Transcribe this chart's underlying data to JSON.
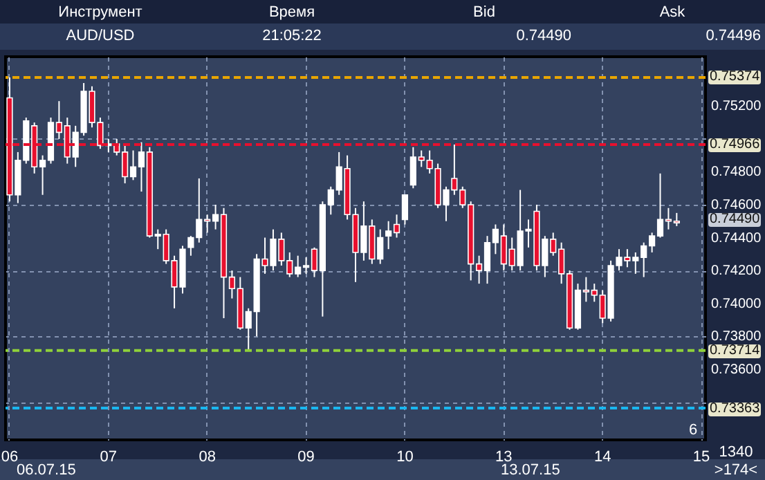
{
  "chart_data": {
    "type": "candlestick",
    "categories": [
      "06",
      null,
      null,
      null,
      null,
      null,
      null,
      null,
      null,
      null,
      null,
      null,
      "07",
      null,
      null,
      null,
      null,
      null,
      null,
      null,
      null,
      null,
      null,
      null,
      "08",
      null,
      null,
      null,
      null,
      null,
      null,
      null,
      null,
      null,
      null,
      null,
      "09",
      null,
      null,
      null,
      null,
      null,
      null,
      null,
      null,
      null,
      null,
      null,
      "10",
      null,
      null,
      null,
      null,
      null,
      null,
      null,
      null,
      null,
      null,
      null,
      "13",
      null,
      null,
      null,
      null,
      null,
      null,
      null,
      null,
      null,
      null,
      null,
      "14",
      null,
      null,
      null,
      null,
      null,
      null,
      null,
      null,
      null,
      null,
      null,
      "15"
    ],
    "ohlc": [
      [
        0.7525,
        0.75374,
        0.7462,
        0.7466
      ],
      [
        0.7466,
        0.7492,
        0.7461,
        0.7487
      ],
      [
        0.7487,
        0.7513,
        0.7485,
        0.7511
      ],
      [
        0.7508,
        0.751,
        0.7479,
        0.7483
      ],
      [
        0.7483,
        0.749,
        0.7466,
        0.7487
      ],
      [
        0.7487,
        0.7513,
        0.7485,
        0.751
      ],
      [
        0.751,
        0.7523,
        0.75,
        0.7504
      ],
      [
        0.7508,
        0.7513,
        0.7485,
        0.7489
      ],
      [
        0.7489,
        0.7508,
        0.7483,
        0.7504
      ],
      [
        0.7504,
        0.7534,
        0.7502,
        0.7529
      ],
      [
        0.7529,
        0.7532,
        0.7507,
        0.751
      ],
      [
        0.751,
        0.7513,
        0.7494,
        0.7496
      ],
      [
        0.7496,
        0.75,
        0.7492,
        0.7497
      ],
      [
        0.7497,
        0.75,
        0.749,
        0.7492
      ],
      [
        0.7492,
        0.7496,
        0.7473,
        0.7477
      ],
      [
        0.7477,
        0.7493,
        0.7475,
        0.7483
      ],
      [
        0.7483,
        0.7498,
        0.7468,
        0.7492
      ],
      [
        0.7492,
        0.7495,
        0.744,
        0.7441
      ],
      [
        0.7441,
        0.7445,
        0.7433,
        0.7442
      ],
      [
        0.7442,
        0.7445,
        0.7424,
        0.7426
      ],
      [
        0.7426,
        0.7429,
        0.7397,
        0.741
      ],
      [
        0.741,
        0.7435,
        0.7406,
        0.7433
      ],
      [
        0.7434,
        0.7441,
        0.7429,
        0.744
      ],
      [
        0.744,
        0.7476,
        0.7437,
        0.7451
      ],
      [
        0.7451,
        0.7454,
        0.7443,
        0.745
      ],
      [
        0.745,
        0.746,
        0.7445,
        0.7454
      ],
      [
        0.7454,
        0.7458,
        0.7391,
        0.7416
      ],
      [
        0.7416,
        0.742,
        0.7403,
        0.7409
      ],
      [
        0.7409,
        0.7416,
        0.7384,
        0.7385
      ],
      [
        0.7385,
        0.7397,
        0.73714,
        0.7395
      ],
      [
        0.7395,
        0.743,
        0.738,
        0.7427
      ],
      [
        0.7427,
        0.744,
        0.7418,
        0.7423
      ],
      [
        0.7423,
        0.7445,
        0.742,
        0.7439
      ],
      [
        0.7439,
        0.7443,
        0.7423,
        0.7426
      ],
      [
        0.7426,
        0.7431,
        0.7416,
        0.7418
      ],
      [
        0.7418,
        0.7429,
        0.7416,
        0.7422
      ],
      [
        0.7422,
        0.7428,
        0.7418,
        0.7423
      ],
      [
        0.7433,
        0.7434,
        0.7416,
        0.742
      ],
      [
        0.742,
        0.7462,
        0.7392,
        0.746
      ],
      [
        0.746,
        0.7471,
        0.7454,
        0.7469
      ],
      [
        0.7469,
        0.7492,
        0.7466,
        0.7483
      ],
      [
        0.7482,
        0.749,
        0.7451,
        0.7454
      ],
      [
        0.7454,
        0.7458,
        0.7413,
        0.7431
      ],
      [
        0.7431,
        0.7462,
        0.7426,
        0.7447
      ],
      [
        0.7447,
        0.7451,
        0.7424,
        0.7427
      ],
      [
        0.7427,
        0.7445,
        0.7424,
        0.744
      ],
      [
        0.7441,
        0.745,
        0.7433,
        0.7444
      ],
      [
        0.7448,
        0.7454,
        0.744,
        0.7443
      ],
      [
        0.7451,
        0.7466,
        0.7448,
        0.7466
      ],
      [
        0.7472,
        0.7495,
        0.747,
        0.7489
      ],
      [
        0.7489,
        0.7493,
        0.7483,
        0.7487
      ],
      [
        0.7487,
        0.7493,
        0.7479,
        0.7482
      ],
      [
        0.7482,
        0.7485,
        0.7458,
        0.746
      ],
      [
        0.746,
        0.7471,
        0.745,
        0.7469
      ],
      [
        0.7476,
        0.74966,
        0.7466,
        0.7469
      ],
      [
        0.7469,
        0.7471,
        0.7458,
        0.746
      ],
      [
        0.746,
        0.7462,
        0.7414,
        0.7424
      ],
      [
        0.7424,
        0.7429,
        0.7412,
        0.742
      ],
      [
        0.742,
        0.7441,
        0.7412,
        0.7437
      ],
      [
        0.7437,
        0.7448,
        0.743,
        0.7445
      ],
      [
        0.7441,
        0.7448,
        0.742,
        0.7424
      ],
      [
        0.7433,
        0.744,
        0.742,
        0.7423
      ],
      [
        0.7423,
        0.7469,
        0.742,
        0.7444
      ],
      [
        0.7444,
        0.7451,
        0.7434,
        0.7445
      ],
      [
        0.7456,
        0.746,
        0.742,
        0.7423
      ],
      [
        0.7423,
        0.7441,
        0.7416,
        0.7439
      ],
      [
        0.7439,
        0.7443,
        0.7429,
        0.7431
      ],
      [
        0.7433,
        0.7437,
        0.7412,
        0.7418
      ],
      [
        0.7418,
        0.742,
        0.7384,
        0.7385
      ],
      [
        0.7385,
        0.7412,
        0.7384,
        0.7408
      ],
      [
        0.7408,
        0.7416,
        0.7401,
        0.7407
      ],
      [
        0.7408,
        0.7412,
        0.7401,
        0.7405
      ],
      [
        0.7405,
        0.7408,
        0.7388,
        0.7391
      ],
      [
        0.7391,
        0.7426,
        0.7389,
        0.7423
      ],
      [
        0.7423,
        0.7433,
        0.742,
        0.7428
      ],
      [
        0.7428,
        0.7433,
        0.7422,
        0.7426
      ],
      [
        0.7426,
        0.7431,
        0.7418,
        0.7428
      ],
      [
        0.7428,
        0.7437,
        0.7416,
        0.7435
      ],
      [
        0.7435,
        0.7443,
        0.7431,
        0.7441
      ],
      [
        0.7441,
        0.7479,
        0.744,
        0.7451
      ],
      [
        0.7451,
        0.7458,
        0.7445,
        0.745
      ],
      [
        0.745,
        0.7455,
        0.7447,
        0.7449
      ],
      null,
      null,
      null
    ],
    "ylim": [
      0.7317,
      0.755
    ],
    "yticks": [
      {
        "value": 0.734,
        "label": null
      },
      {
        "value": 0.736,
        "label": "0.73600"
      },
      {
        "value": 0.738,
        "label": "0.73800"
      },
      {
        "value": 0.74,
        "label": "0.74000"
      },
      {
        "value": 0.742,
        "label": "0.74200"
      },
      {
        "value": 0.744,
        "label": "0.74400"
      },
      {
        "value": 0.746,
        "label": "0.74600"
      },
      {
        "value": 0.748,
        "label": "0.74800"
      },
      {
        "value": 0.75,
        "label": null
      },
      {
        "value": 0.752,
        "label": "0.75200"
      }
    ],
    "grid": true,
    "ref_lines": [
      {
        "axis": "y",
        "value": 0.75374,
        "label": "0.75374",
        "color": "#e8a500",
        "line_style": "dashed"
      },
      {
        "axis": "y",
        "value": 0.74966,
        "label": "0.74966",
        "color": "#e8102e",
        "line_style": "dashed"
      },
      {
        "axis": "y",
        "value": 0.73714,
        "label": "0.73714",
        "color": "#8fd13a",
        "line_style": "dashed"
      },
      {
        "axis": "y",
        "value": 0.73363,
        "label": "0.73363",
        "color": "#19b7f0",
        "line_style": "dashed"
      }
    ],
    "annotations": [
      "Инструмент",
      "Время",
      "Bid",
      "Ask",
      "AUD/USD",
      "21:05:22",
      "0.74490",
      "0.74496",
      "0.74490",
      "6",
      "06.07.15",
      "13.07.15",
      "1340",
      ">174<"
    ]
  }
}
